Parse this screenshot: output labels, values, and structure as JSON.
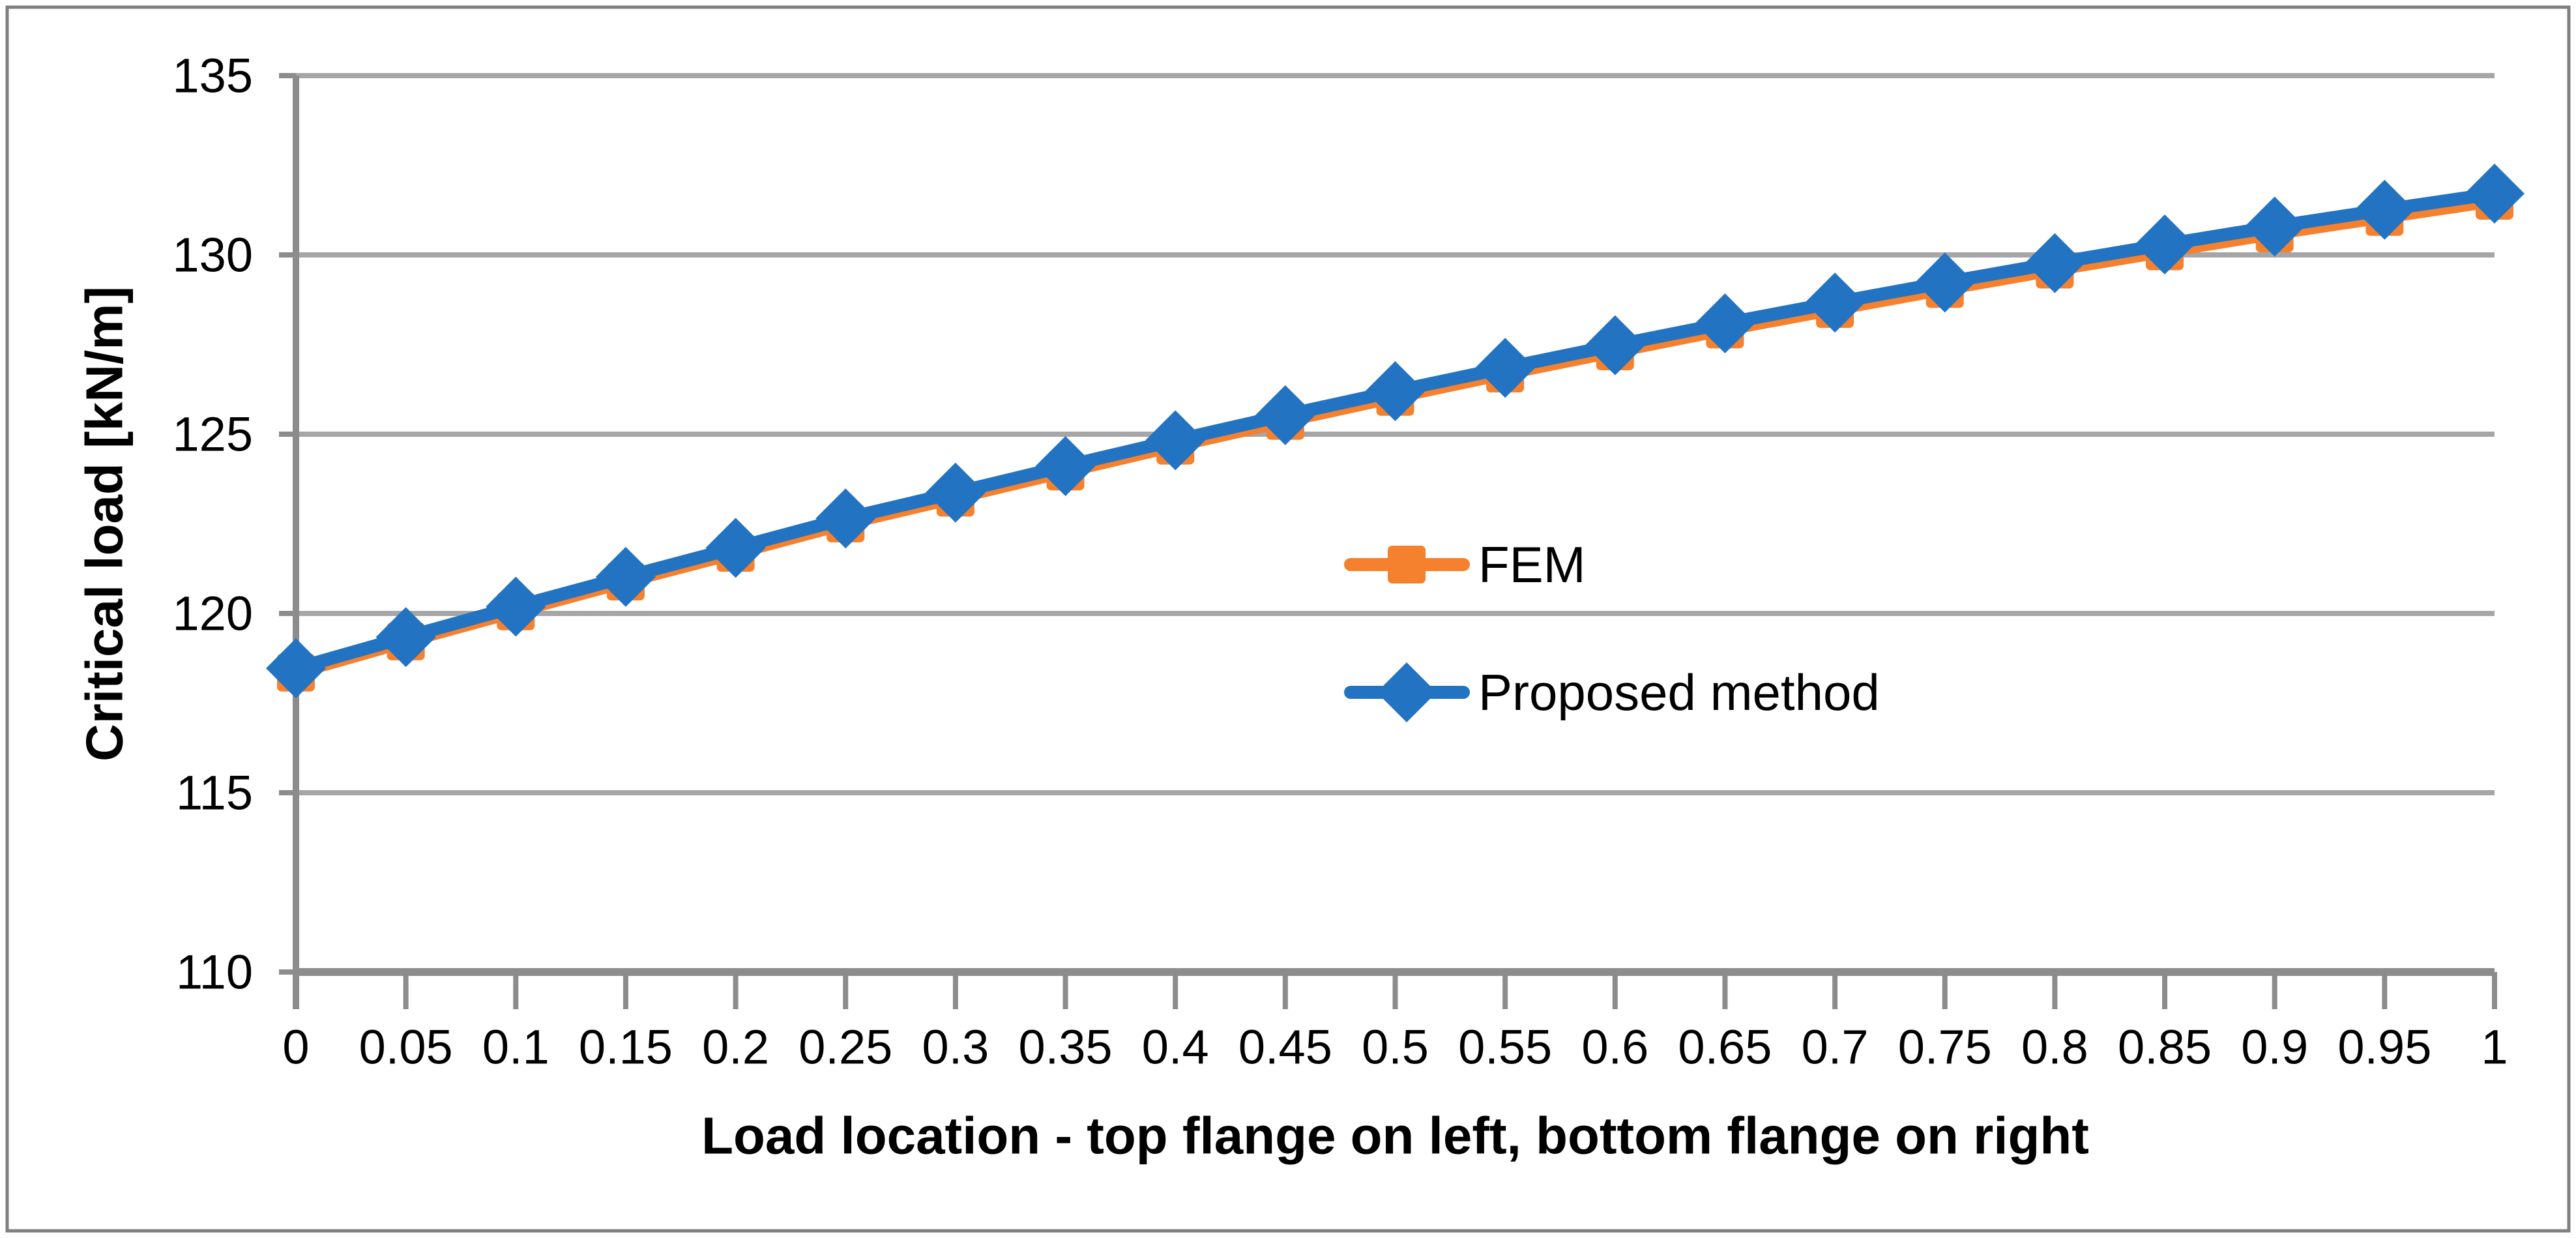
{
  "chart_data": {
    "type": "line",
    "title": "",
    "xlabel": "Load location - top flange on left, bottom flange on right",
    "ylabel": "Critical load [kN/m]",
    "x": [
      0,
      0.05,
      0.1,
      0.15,
      0.2,
      0.25,
      0.3,
      0.35,
      0.4,
      0.45,
      0.5,
      0.55,
      0.6,
      0.65,
      0.7,
      0.75,
      0.8,
      0.85,
      0.9,
      0.95,
      1
    ],
    "x_tick_labels": [
      "0",
      "0.05",
      "0.1",
      "0.15",
      "0.2",
      "0.25",
      "0.3",
      "0.35",
      "0.4",
      "0.45",
      "0.5",
      "0.55",
      "0.6",
      "0.65",
      "0.7",
      "0.75",
      "0.8",
      "0.85",
      "0.9",
      "0.95",
      "1"
    ],
    "y_ticks": [
      110,
      115,
      120,
      125,
      130,
      135
    ],
    "y_tick_labels": [
      "110",
      "115",
      "120",
      "125",
      "130",
      "135"
    ],
    "ylim": [
      110,
      135
    ],
    "grid": "horizontal",
    "legend_position": "inside-plot-center",
    "series": [
      {
        "name": "FEM",
        "marker": "square",
        "color": "#F5802E",
        "values": [
          118.35,
          119.22,
          120.06,
          120.89,
          121.69,
          122.51,
          123.23,
          123.96,
          124.68,
          125.37,
          126.04,
          126.69,
          127.31,
          127.92,
          128.49,
          129.05,
          129.59,
          130.1,
          130.6,
          131.06,
          131.51
        ]
      },
      {
        "name": "Proposed method",
        "marker": "diamond",
        "color": "#2373C3",
        "values": [
          118.47,
          119.34,
          120.19,
          121.02,
          121.83,
          122.65,
          123.37,
          124.11,
          124.83,
          125.53,
          126.2,
          126.85,
          127.48,
          128.09,
          128.67,
          129.23,
          129.77,
          130.29,
          130.79,
          131.26,
          131.71
        ]
      }
    ]
  },
  "frame": {
    "background_color": "#FFFFFF",
    "border_color": "#7F7F7F",
    "gridline_color": "#A6A6A6",
    "axis_color": "#8C8C8C",
    "text_color": "#000000"
  }
}
